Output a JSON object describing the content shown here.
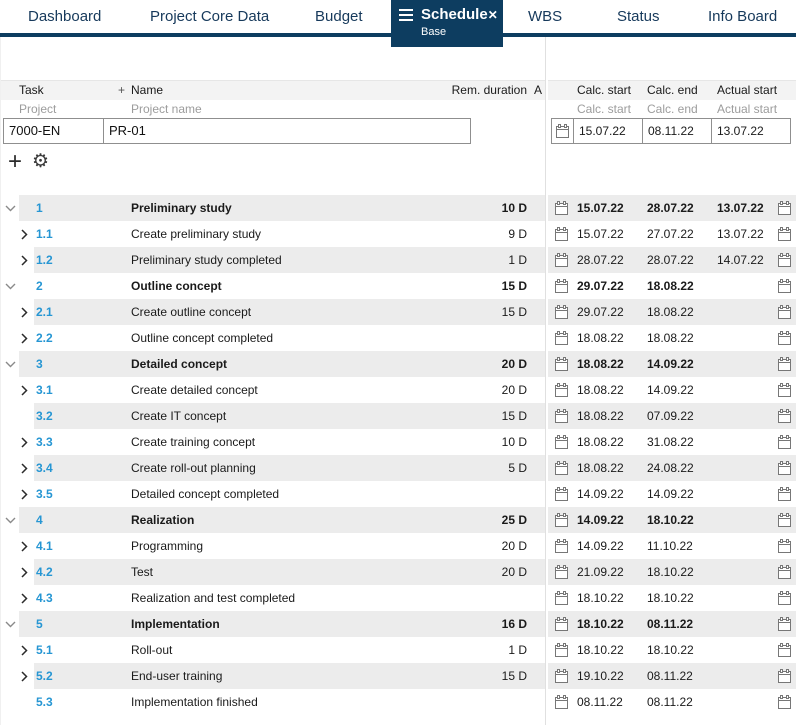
{
  "colors": {
    "navy": "#0d3d60",
    "accent_blue": "#2696d3",
    "row_stripe": "#ececec",
    "header_bg": "#f3f3f3",
    "muted_text": "#9c9c9c"
  },
  "tabs": {
    "items": [
      {
        "label": "Dashboard"
      },
      {
        "label": "Project Core Data"
      },
      {
        "label": "Budget"
      },
      {
        "label": "Schedule",
        "active": true,
        "sublabel": "Base"
      },
      {
        "label": "WBS"
      },
      {
        "label": "Status"
      },
      {
        "label": "Info Board"
      }
    ]
  },
  "table": {
    "header": {
      "task": "Task",
      "name_plus": "+",
      "name": "Name",
      "rem_duration": "Rem. duration",
      "truncated_col": "A",
      "calc_start": "Calc. start",
      "calc_end": "Calc. end",
      "actual_start": "Actual start"
    },
    "subheader": {
      "project": "Project",
      "project_name": "Project name",
      "calc_start": "Calc. start",
      "calc_end": "Calc. end",
      "actual_start": "Actual start"
    },
    "project_row": {
      "task_id": "7000-EN",
      "name": "PR-01",
      "calc_start": "15.07.22",
      "calc_end": "08.11.22",
      "actual_start": "13.07.22"
    }
  },
  "toolbar": {
    "plus_icon": "+",
    "gear_icon": "⚙︎"
  },
  "tasks": {
    "rows": [
      {
        "wbs": "1",
        "name": "Preliminary study",
        "duration": "10 D",
        "calc_start": "15.07.22",
        "calc_end": "28.07.22",
        "actual_start": "13.07.22",
        "group": true,
        "expander": "down"
      },
      {
        "wbs": "1.1",
        "name": "Create preliminary study",
        "duration": "9 D",
        "calc_start": "15.07.22",
        "calc_end": "27.07.22",
        "actual_start": "13.07.22",
        "expander": "right"
      },
      {
        "wbs": "1.2",
        "name": "Preliminary study completed",
        "duration": "1 D",
        "calc_start": "28.07.22",
        "calc_end": "28.07.22",
        "actual_start": "14.07.22",
        "expander": "right"
      },
      {
        "wbs": "2",
        "name": "Outline concept",
        "duration": "15 D",
        "calc_start": "29.07.22",
        "calc_end": "18.08.22",
        "actual_start": "",
        "group": true,
        "expander": "down"
      },
      {
        "wbs": "2.1",
        "name": "Create outline concept",
        "duration": "15 D",
        "calc_start": "29.07.22",
        "calc_end": "18.08.22",
        "actual_start": "",
        "expander": "right"
      },
      {
        "wbs": "2.2",
        "name": "Outline concept completed",
        "duration": "",
        "calc_start": "18.08.22",
        "calc_end": "18.08.22",
        "actual_start": "",
        "expander": "right"
      },
      {
        "wbs": "3",
        "name": "Detailed concept",
        "duration": "20 D",
        "calc_start": "18.08.22",
        "calc_end": "14.09.22",
        "actual_start": "",
        "group": true,
        "expander": "down"
      },
      {
        "wbs": "3.1",
        "name": "Create detailed concept",
        "duration": "20 D",
        "calc_start": "18.08.22",
        "calc_end": "14.09.22",
        "actual_start": "",
        "expander": "right"
      },
      {
        "wbs": "3.2",
        "name": "Create IT concept",
        "duration": "15 D",
        "calc_start": "18.08.22",
        "calc_end": "07.09.22",
        "actual_start": "",
        "expander": "none"
      },
      {
        "wbs": "3.3",
        "name": "Create training concept",
        "duration": "10 D",
        "calc_start": "18.08.22",
        "calc_end": "31.08.22",
        "actual_start": "",
        "expander": "right"
      },
      {
        "wbs": "3.4",
        "name": "Create roll-out planning",
        "duration": "5 D",
        "calc_start": "18.08.22",
        "calc_end": "24.08.22",
        "actual_start": "",
        "expander": "right"
      },
      {
        "wbs": "3.5",
        "name": "Detailed concept completed",
        "duration": "",
        "calc_start": "14.09.22",
        "calc_end": "14.09.22",
        "actual_start": "",
        "expander": "right"
      },
      {
        "wbs": "4",
        "name": "Realization",
        "duration": "25 D",
        "calc_start": "14.09.22",
        "calc_end": "18.10.22",
        "actual_start": "",
        "group": true,
        "expander": "down"
      },
      {
        "wbs": "4.1",
        "name": "Programming",
        "duration": "20 D",
        "calc_start": "14.09.22",
        "calc_end": "11.10.22",
        "actual_start": "",
        "expander": "right"
      },
      {
        "wbs": "4.2",
        "name": "Test",
        "duration": "20 D",
        "calc_start": "21.09.22",
        "calc_end": "18.10.22",
        "actual_start": "",
        "expander": "right"
      },
      {
        "wbs": "4.3",
        "name": "Realization and test completed",
        "duration": "",
        "calc_start": "18.10.22",
        "calc_end": "18.10.22",
        "actual_start": "",
        "expander": "right"
      },
      {
        "wbs": "5",
        "name": "Implementation",
        "duration": "16 D",
        "calc_start": "18.10.22",
        "calc_end": "08.11.22",
        "actual_start": "",
        "group": true,
        "expander": "down"
      },
      {
        "wbs": "5.1",
        "name": "Roll-out",
        "duration": "1 D",
        "calc_start": "18.10.22",
        "calc_end": "18.10.22",
        "actual_start": "",
        "expander": "right"
      },
      {
        "wbs": "5.2",
        "name": "End-user training",
        "duration": "15 D",
        "calc_start": "19.10.22",
        "calc_end": "08.11.22",
        "actual_start": "",
        "expander": "right"
      },
      {
        "wbs": "5.3",
        "name": "Implementation finished",
        "duration": "",
        "calc_start": "08.11.22",
        "calc_end": "08.11.22",
        "actual_start": "",
        "expander": "none"
      }
    ]
  }
}
